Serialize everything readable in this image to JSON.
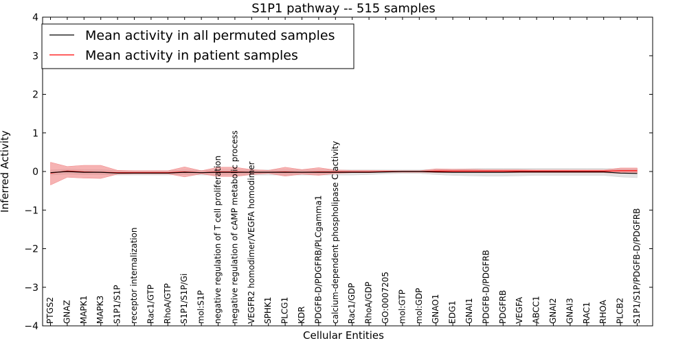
{
  "chart_data": {
    "type": "line",
    "title": "S1P1 pathway -- 515 samples",
    "xlabel": "Cellular Entities",
    "ylabel": "Inferred Activity",
    "ylim": [
      -4,
      4
    ],
    "yticks": [
      -4,
      -3,
      -2,
      -1,
      0,
      1,
      2,
      3,
      4
    ],
    "ytick_labels": [
      "−4",
      "−3",
      "−2",
      "−1",
      "0",
      "1",
      "2",
      "3",
      "4"
    ],
    "grid": false,
    "legend_position": "top-left",
    "categories": [
      "PTGS2",
      "GNAZ",
      "MAPK1",
      "MAPK3",
      "S1P1/S1P",
      "receptor internalization",
      "Rac1/GTP",
      "RhoA/GTP",
      "S1P1/S1P/Gi",
      "mol:S1P",
      "negative regulation of T cell proliferation",
      "negative regulation of cAMP metabolic process",
      "VEGFR2 homodimer/VEGFA homodimer",
      "SPHK1",
      "PLCG1",
      "KDR",
      "PDGFB-D/PDGFRB/PLCgamma1",
      "calcium-dependent phospholipase C activity",
      "Rac1/GDP",
      "RhoA/GDP",
      "GO:0007205",
      "mol:GTP",
      "mol:GDP",
      "GNAO1",
      "EDG1",
      "GNAI1",
      "PDGFB-D/PDGFRB",
      "PDGFRB",
      "VEGFA",
      "ABCC1",
      "GNAI2",
      "GNAI3",
      "RAC1",
      "RHOA",
      "PLCB2",
      "S1P1/S1P/PDGFB-D/PDGFRB"
    ],
    "series": [
      {
        "name": "Mean activity in all permuted samples",
        "color": "#000000",
        "band_color": "#cccccc",
        "values": [
          -0.03,
          0.0,
          -0.02,
          -0.02,
          -0.04,
          -0.04,
          -0.04,
          -0.04,
          -0.02,
          -0.03,
          -0.02,
          -0.02,
          -0.02,
          -0.02,
          -0.02,
          -0.02,
          -0.02,
          -0.02,
          -0.02,
          -0.02,
          -0.01,
          0.0,
          0.0,
          -0.01,
          -0.02,
          -0.02,
          -0.02,
          -0.02,
          -0.01,
          -0.01,
          -0.01,
          -0.01,
          -0.01,
          -0.01,
          -0.04,
          -0.05
        ],
        "lower": [
          -0.09,
          -0.07,
          -0.08,
          -0.08,
          -0.09,
          -0.09,
          -0.09,
          -0.09,
          -0.08,
          -0.09,
          -0.09,
          -0.09,
          -0.09,
          -0.09,
          -0.09,
          -0.09,
          -0.09,
          -0.09,
          -0.09,
          -0.08,
          -0.06,
          -0.05,
          -0.05,
          -0.08,
          -0.1,
          -0.11,
          -0.12,
          -0.12,
          -0.11,
          -0.1,
          -0.1,
          -0.1,
          -0.1,
          -0.1,
          -0.14,
          -0.16
        ],
        "upper": [
          0.04,
          0.06,
          0.05,
          0.05,
          0.02,
          0.02,
          0.02,
          0.02,
          0.04,
          0.03,
          0.04,
          0.04,
          0.04,
          0.04,
          0.04,
          0.04,
          0.04,
          0.04,
          0.04,
          0.04,
          0.04,
          0.04,
          0.04,
          0.06,
          0.06,
          0.07,
          0.08,
          0.08,
          0.08,
          0.08,
          0.08,
          0.08,
          0.08,
          0.08,
          0.06,
          0.06
        ]
      },
      {
        "name": "Mean activity in patient samples",
        "color": "#ff0000",
        "band_color": "#f08080",
        "values": [
          -0.04,
          0.01,
          -0.01,
          -0.02,
          -0.03,
          -0.03,
          -0.03,
          -0.03,
          -0.01,
          -0.03,
          -0.01,
          -0.01,
          -0.02,
          -0.02,
          -0.01,
          -0.02,
          -0.01,
          -0.01,
          -0.01,
          -0.01,
          0.0,
          0.0,
          0.0,
          0.01,
          0.01,
          0.01,
          0.01,
          0.01,
          0.01,
          0.01,
          0.01,
          0.01,
          0.01,
          0.01,
          0.02,
          0.02
        ],
        "lower": [
          -0.35,
          -0.15,
          -0.17,
          -0.18,
          -0.07,
          -0.06,
          -0.06,
          -0.06,
          -0.14,
          -0.06,
          -0.13,
          -0.13,
          -0.08,
          -0.05,
          -0.12,
          -0.07,
          -0.1,
          -0.05,
          -0.03,
          -0.03,
          -0.02,
          -0.02,
          -0.02,
          -0.03,
          -0.03,
          -0.03,
          -0.03,
          -0.03,
          -0.03,
          -0.03,
          -0.03,
          -0.03,
          -0.03,
          -0.03,
          -0.05,
          -0.05
        ],
        "upper": [
          0.24,
          0.13,
          0.16,
          0.16,
          0.03,
          0.02,
          0.02,
          0.02,
          0.12,
          0.02,
          0.11,
          0.11,
          0.05,
          0.03,
          0.11,
          0.05,
          0.1,
          0.04,
          0.03,
          0.03,
          0.02,
          0.02,
          0.02,
          0.07,
          0.06,
          0.06,
          0.05,
          0.05,
          0.05,
          0.04,
          0.04,
          0.04,
          0.04,
          0.04,
          0.09,
          0.09
        ]
      }
    ]
  }
}
